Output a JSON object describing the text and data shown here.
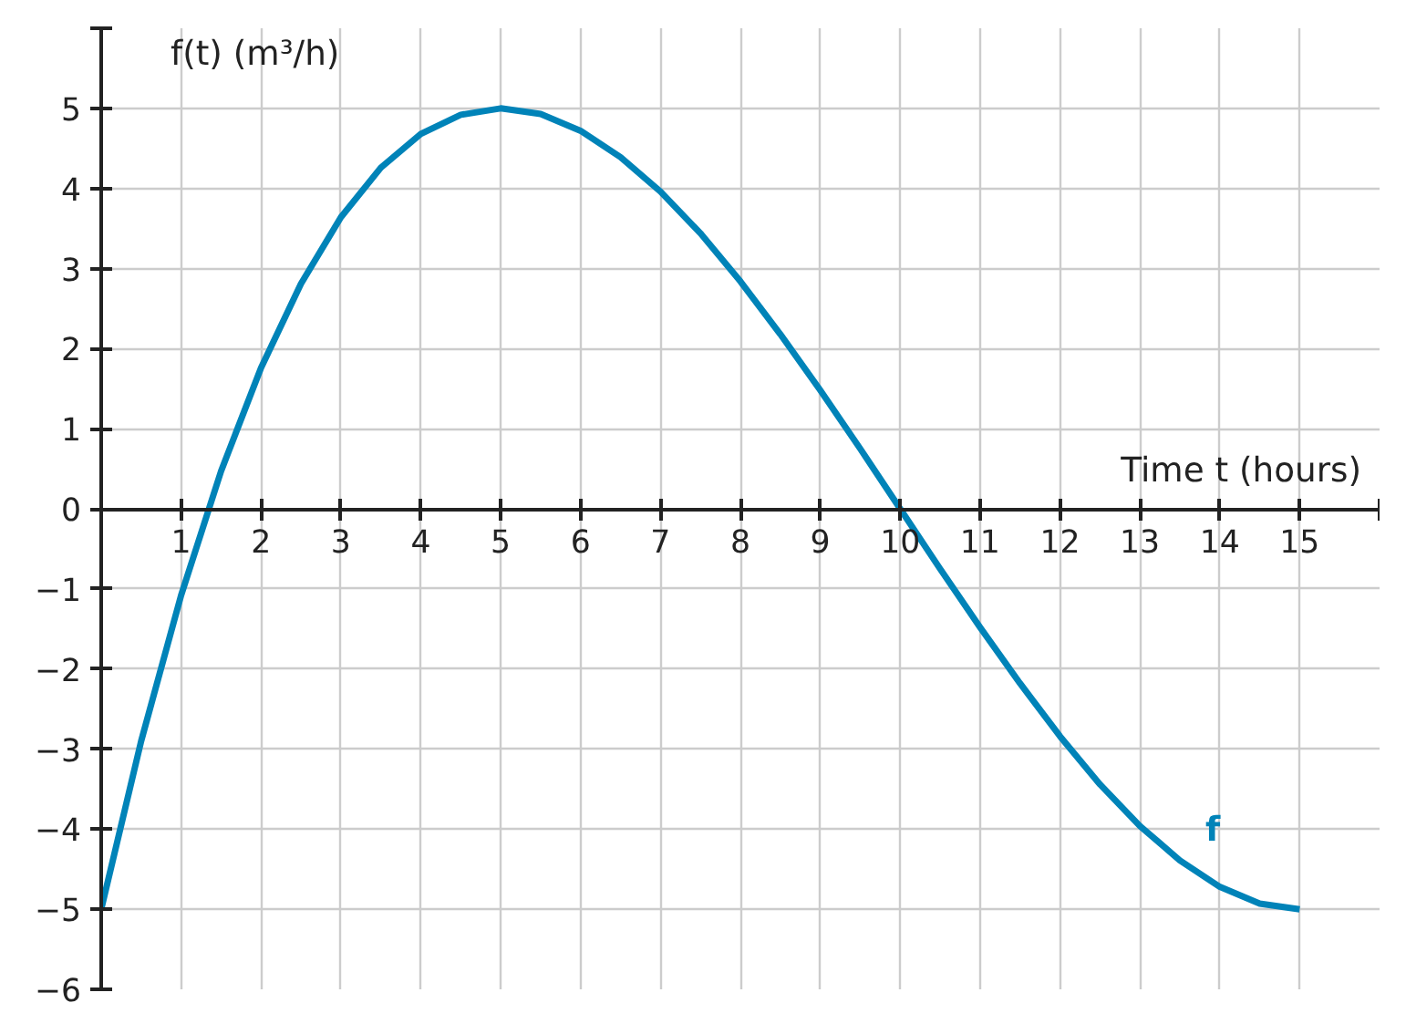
{
  "chart_data": {
    "type": "line",
    "xlabel": "Time t (hours)",
    "ylabel": "f(t) (m³/h)",
    "x": [
      0,
      0.5,
      1,
      1.5,
      2,
      2.5,
      3,
      3.5,
      4,
      4.5,
      5,
      5.5,
      6,
      6.5,
      7,
      7.5,
      8,
      8.5,
      9,
      9.5,
      10,
      10.5,
      11,
      11.5,
      12,
      12.5,
      13,
      13.5,
      14,
      14.5,
      15
    ],
    "series": [
      {
        "name": "f",
        "color": "#0083b8",
        "values": [
          -5,
          -2.9,
          -1.08,
          0.47,
          1.76,
          2.81,
          3.64,
          4.26,
          4.68,
          4.92,
          5,
          4.93,
          4.72,
          4.39,
          3.96,
          3.44,
          2.84,
          2.18,
          1.48,
          0.75,
          0,
          -0.75,
          -1.48,
          -2.18,
          -2.84,
          -3.44,
          -3.96,
          -4.39,
          -4.72,
          -4.93,
          -5
        ]
      }
    ],
    "xlim": [
      0,
      16
    ],
    "ylim": [
      -6,
      6
    ],
    "xticks": [
      1,
      2,
      3,
      4,
      5,
      6,
      7,
      8,
      9,
      10,
      11,
      12,
      13,
      14,
      15,
      {
        "value": 16,
        "label": null
      }
    ],
    "yticks": [
      {
        "value": -6,
        "label": "−6"
      },
      {
        "value": -5,
        "label": "−5"
      },
      {
        "value": -4,
        "label": "−4"
      },
      {
        "value": -3,
        "label": "−3"
      },
      {
        "value": -2,
        "label": "−2"
      },
      {
        "value": -1,
        "label": "−1"
      },
      0,
      1,
      2,
      3,
      4,
      5,
      {
        "value": 6,
        "label": null
      }
    ],
    "grid": true,
    "marker": "none",
    "line_style": "solid"
  }
}
